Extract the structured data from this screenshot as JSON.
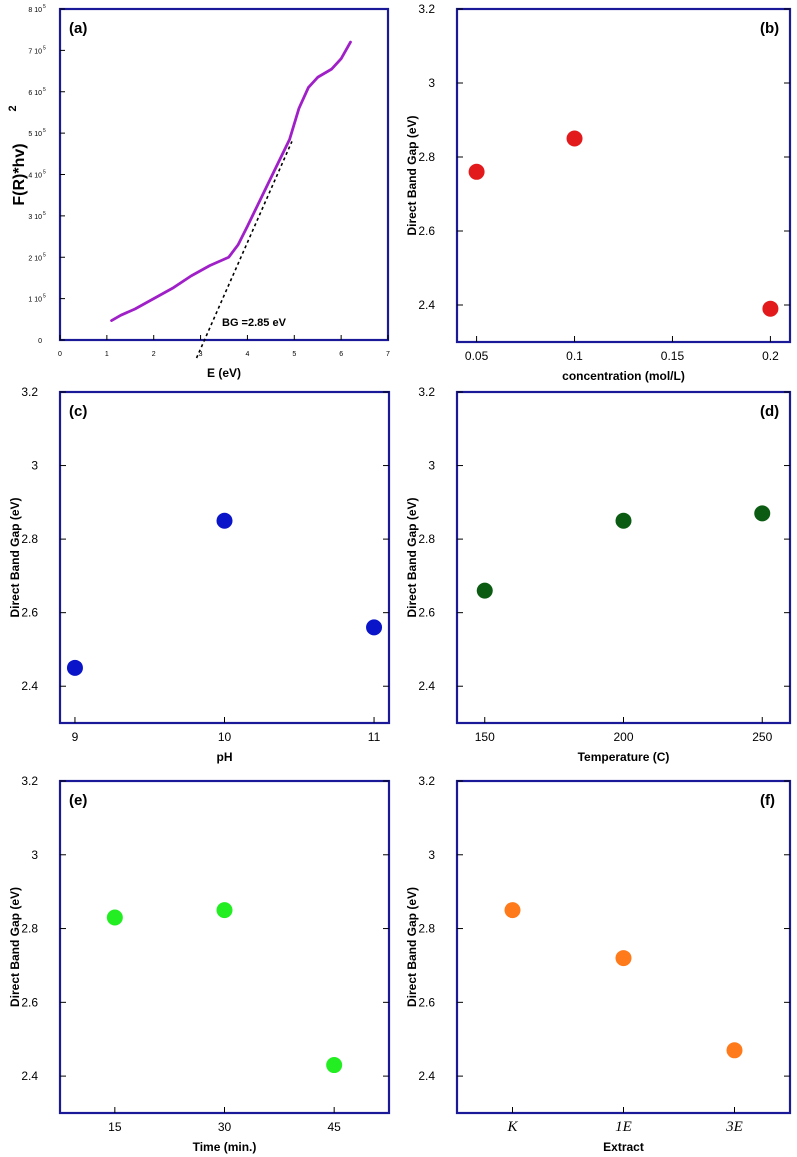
{
  "chart_data": [
    {
      "panel": "(a)",
      "type": "line",
      "xlabel": "E (eV)",
      "ylabel": "F(R)*hv)",
      "ylabel_superscript": "2",
      "xlim": [
        0,
        7
      ],
      "ylim": [
        0,
        800000
      ],
      "x_ticks": [
        "0",
        "1",
        "2",
        "3",
        "4",
        "5",
        "6",
        "7"
      ],
      "y_ticks": [
        {
          "mant": "0",
          "exp": ""
        },
        {
          "mant": "1 10",
          "exp": "5"
        },
        {
          "mant": "2 10",
          "exp": "5"
        },
        {
          "mant": "3 10",
          "exp": "5"
        },
        {
          "mant": "4 10",
          "exp": "5"
        },
        {
          "mant": "5 10",
          "exp": "5"
        },
        {
          "mant": "6 10",
          "exp": "5"
        },
        {
          "mant": "7 10",
          "exp": "5"
        },
        {
          "mant": "8 10",
          "exp": "5"
        }
      ],
      "curve": {
        "x": [
          1.1,
          1.3,
          1.6,
          2.0,
          2.4,
          2.8,
          3.2,
          3.6,
          3.8,
          4.0,
          4.3,
          4.6,
          4.9,
          5.1,
          5.3,
          5.5,
          5.8,
          6.0,
          6.2
        ],
        "y": [
          47000,
          60000,
          75000,
          100000,
          125000,
          155000,
          180000,
          200000,
          230000,
          275000,
          345000,
          415000,
          485000,
          560000,
          610000,
          635000,
          655000,
          680000,
          720000
        ],
        "color": "#a020c8"
      },
      "fit_line": {
        "x": [
          2.85,
          4.95
        ],
        "y": [
          0,
          480000
        ],
        "color": "#000000"
      },
      "annotation": "BG =2.85 eV"
    },
    {
      "panel": "(b)",
      "type": "scatter",
      "xlabel": "concentration (mol/L)",
      "ylabel": "Direct Band Gap (eV)",
      "xlim": [
        0.04,
        0.21
      ],
      "ylim": [
        2.3,
        3.2
      ],
      "x_ticks": [
        "0.05",
        "0.1",
        "0.15",
        "0.2"
      ],
      "y_ticks": [
        "2.4",
        "2.6",
        "2.8",
        "3",
        "3.2"
      ],
      "x": [
        0.05,
        0.1,
        0.2
      ],
      "y": [
        2.76,
        2.85,
        2.39
      ],
      "color": "#e31a1c"
    },
    {
      "panel": "(c)",
      "type": "scatter",
      "xlabel": "pH",
      "ylabel": "Direct Band Gap (eV)",
      "xlim": [
        8.9,
        11.1
      ],
      "ylim": [
        2.3,
        3.2
      ],
      "x_ticks": [
        "9",
        "10",
        "11"
      ],
      "y_ticks": [
        "2.4",
        "2.6",
        "2.8",
        "3",
        "3.2"
      ],
      "x": [
        9,
        10,
        11
      ],
      "y": [
        2.45,
        2.85,
        2.56
      ],
      "color": "#0a14c8"
    },
    {
      "panel": "(d)",
      "type": "scatter",
      "xlabel": "Temperature (C)",
      "ylabel": "Direct Band Gap (eV)",
      "xlim": [
        140,
        260
      ],
      "ylim": [
        2.3,
        3.2
      ],
      "x_ticks": [
        "150",
        "200",
        "250"
      ],
      "y_ticks": [
        "2.4",
        "2.6",
        "2.8",
        "3",
        "3.2"
      ],
      "x": [
        150,
        200,
        250
      ],
      "y": [
        2.66,
        2.85,
        2.87
      ],
      "color": "#0b5c12"
    },
    {
      "panel": "(e)",
      "type": "scatter",
      "xlabel": "Time (min.)",
      "ylabel": "Direct Band Gap (eV)",
      "xlim": [
        7.5,
        52.5
      ],
      "ylim": [
        2.3,
        3.2
      ],
      "x_ticks": [
        "15",
        "30",
        "45"
      ],
      "y_ticks": [
        "2.4",
        "2.6",
        "2.8",
        "3",
        "3.2"
      ],
      "x": [
        15,
        30,
        45
      ],
      "y": [
        2.83,
        2.85,
        2.43
      ],
      "color": "#22ee22"
    },
    {
      "panel": "(f)",
      "type": "scatter",
      "xlabel": "Extract",
      "ylabel": "Direct Band Gap (eV)",
      "xlim": [
        0.5,
        3.5
      ],
      "ylim": [
        2.3,
        3.2
      ],
      "categories": [
        "K",
        "1E",
        "3E"
      ],
      "y_ticks": [
        "2.4",
        "2.6",
        "2.8",
        "3",
        "3.2"
      ],
      "x": [
        1,
        2,
        3
      ],
      "y": [
        2.85,
        2.72,
        2.47
      ],
      "color": "#ff7a1a"
    }
  ]
}
